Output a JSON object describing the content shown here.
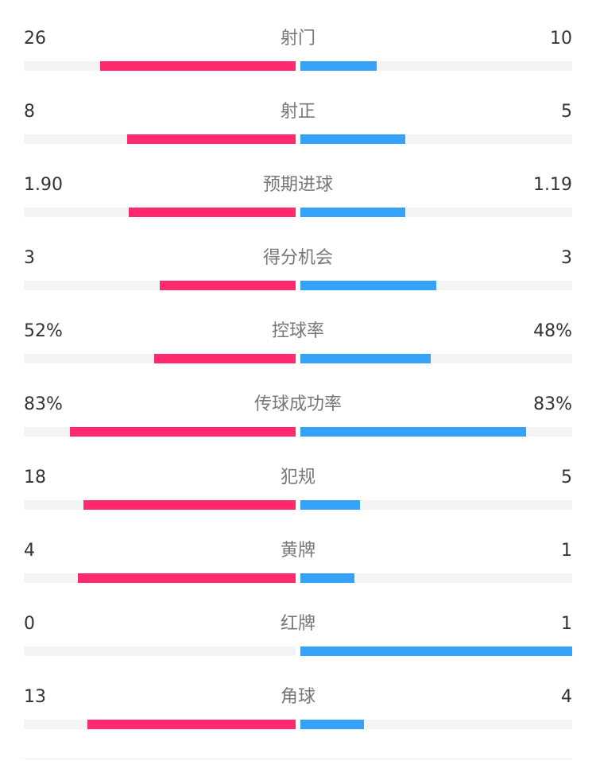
{
  "colors": {
    "home": "#ff2a6d",
    "away": "#36a2f7",
    "track": "#f4f4f4"
  },
  "stats": [
    {
      "label": "射门",
      "home": "26",
      "away": "10",
      "home_share": 0.72,
      "away_share": 0.28
    },
    {
      "label": "射正",
      "home": "8",
      "away": "5",
      "home_share": 0.62,
      "away_share": 0.385
    },
    {
      "label": "预期进球",
      "home": "1.90",
      "away": "1.19",
      "home_share": 0.615,
      "away_share": 0.385
    },
    {
      "label": "得分机会",
      "home": "3",
      "away": "3",
      "home_share": 0.5,
      "away_share": 0.5
    },
    {
      "label": "控球率",
      "home": "52%",
      "away": "48%",
      "home_share": 0.52,
      "away_share": 0.48
    },
    {
      "label": "传球成功率",
      "home": "83%",
      "away": "83%",
      "home_share": 0.83,
      "away_share": 0.83
    },
    {
      "label": "犯规",
      "home": "18",
      "away": "5",
      "home_share": 0.78,
      "away_share": 0.22
    },
    {
      "label": "黄牌",
      "home": "4",
      "away": "1",
      "home_share": 0.8,
      "away_share": 0.2
    },
    {
      "label": "红牌",
      "home": "0",
      "away": "1",
      "home_share": 0,
      "away_share": 1
    },
    {
      "label": "角球",
      "home": "13",
      "away": "4",
      "home_share": 0.765,
      "away_share": 0.235
    }
  ]
}
